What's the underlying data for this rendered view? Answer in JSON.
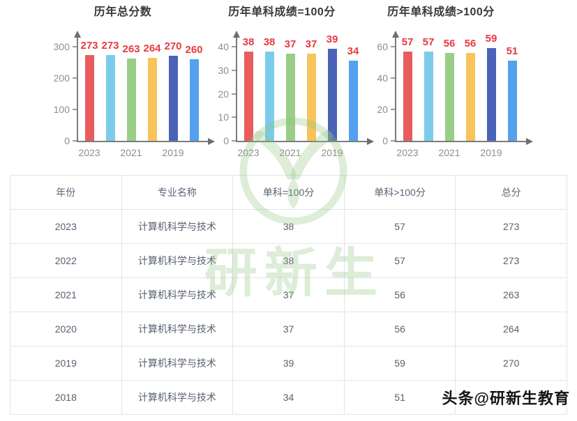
{
  "chart_data": [
    {
      "type": "bar",
      "title": "历年总分数",
      "categories": [
        "2023",
        "2022",
        "2021",
        "2020",
        "2019",
        "2018"
      ],
      "values": [
        273,
        273,
        263,
        264,
        270,
        260
      ],
      "ylim": [
        0,
        300
      ],
      "yticks": [
        0,
        100,
        200,
        300
      ],
      "x_axis_labels": [
        "2023",
        "2021",
        "2019"
      ],
      "grid": false,
      "legend": false
    },
    {
      "type": "bar",
      "title": "历年单科成绩=100分",
      "categories": [
        "2023",
        "2022",
        "2021",
        "2020",
        "2019",
        "2018"
      ],
      "values": [
        38,
        38,
        37,
        37,
        39,
        34
      ],
      "ylim": [
        0,
        40
      ],
      "yticks": [
        0,
        10,
        20,
        30,
        40
      ],
      "x_axis_labels": [
        "2023",
        "2021",
        "2019"
      ],
      "grid": false,
      "legend": false
    },
    {
      "type": "bar",
      "title": "历年单科成绩>100分",
      "categories": [
        "2023",
        "2022",
        "2021",
        "2020",
        "2019",
        "2018"
      ],
      "values": [
        57,
        57,
        56,
        56,
        59,
        51
      ],
      "ylim": [
        0,
        60
      ],
      "yticks": [
        0,
        20,
        40,
        60
      ],
      "x_axis_labels": [
        "2023",
        "2021",
        "2019"
      ],
      "grid": false,
      "legend": false
    }
  ],
  "style": {
    "bar_colors": [
      "#e95c5e",
      "#7bccea",
      "#9ace87",
      "#f8c35a",
      "#4b63b7",
      "#53a1ef"
    ],
    "value_label_color": "#e8393f",
    "axis_color": "#7c7c7c",
    "tick_label_color": "#8e8e8e",
    "title_color": "#383838",
    "watermark_green": "#8ec47e",
    "table_border_color": "#e2e4e8",
    "table_text_color": "#58606f"
  },
  "table": {
    "headers": [
      "年份",
      "专业名称",
      "单科=100分",
      "单科>100分",
      "总分"
    ],
    "rows": [
      [
        "2023",
        "计算机科学与技术",
        "38",
        "57",
        "273"
      ],
      [
        "2022",
        "计算机科学与技术",
        "38",
        "57",
        "273"
      ],
      [
        "2021",
        "计算机科学与技术",
        "37",
        "56",
        "263"
      ],
      [
        "2020",
        "计算机科学与技术",
        "37",
        "56",
        "264"
      ],
      [
        "2019",
        "计算机科学与技术",
        "39",
        "59",
        "270"
      ],
      [
        "2018",
        "计算机科学与技术",
        "34",
        "51",
        "260"
      ]
    ]
  },
  "watermark": {
    "logo_text": "研新生",
    "credit": "头条@研新生教育"
  }
}
